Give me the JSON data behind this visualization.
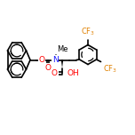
{
  "background_color": "#ffffff",
  "line_color": "#000000",
  "bond_width": 1.2,
  "font_size": 6.5,
  "fig_size": [
    1.52,
    1.52
  ],
  "dpi": 100,
  "atoms": {
    "N_color": "#1a1aff",
    "O_color": "#ff0000",
    "F_color": "#e08000",
    "C_color": "#000000"
  },
  "xlim": [
    0,
    152
  ],
  "ylim": [
    0,
    152
  ]
}
